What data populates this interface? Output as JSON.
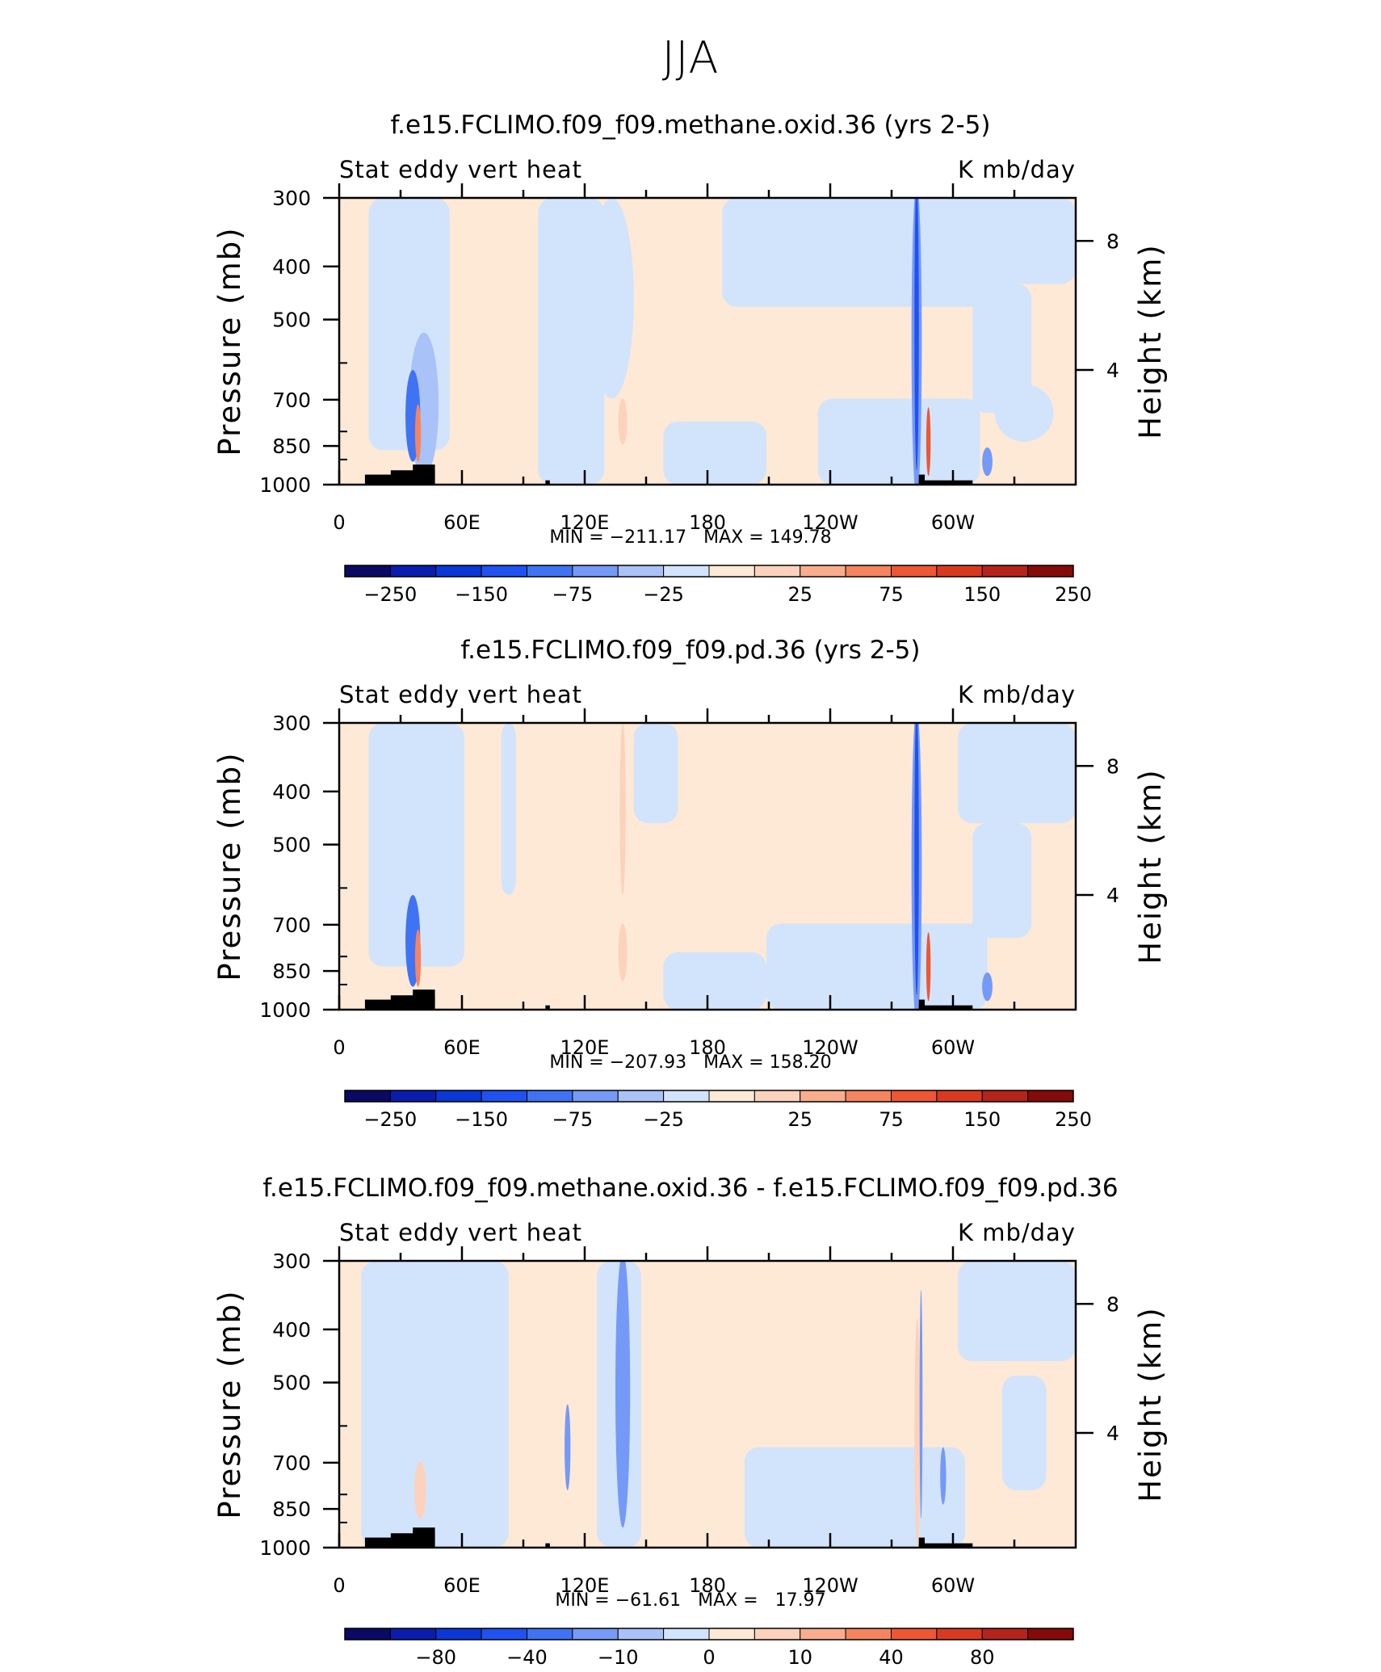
{
  "figure_title": "JJA",
  "colors": {
    "scale": [
      "#0a0a64",
      "#0a1cad",
      "#0a37d6",
      "#1f52f0",
      "#3f73f4",
      "#7599f6",
      "#a9c2f7",
      "#d2e4fb",
      "#fde9d6",
      "#fcd2bc",
      "#f9ad8d",
      "#f5845f",
      "#ee5634",
      "#d93a1f",
      "#b5231a",
      "#850a0a"
    ],
    "land": "#000000",
    "frame": "#000000"
  },
  "chart_data": [
    {
      "type": "heatmap",
      "title": "f.e15.FCLIMO.f09_f09.methane.oxid.36 (yrs 2-5)",
      "left_label": "Stat eddy vert heat",
      "right_label": "K mb/day",
      "ylabel": "Pressure (mb)",
      "ylabel_right": "Height (km)",
      "xticks": [
        "0",
        "60E",
        "120E",
        "180",
        "120W",
        "60W"
      ],
      "yticks": [
        "300",
        "400",
        "500",
        "700",
        "850",
        "1000"
      ],
      "yticks_right": [
        "8",
        "4"
      ],
      "stats": "MIN = −211.17   MAX = 149.78",
      "colorbar_labels": [
        "−250",
        "−150",
        "−75",
        "−25",
        "25",
        "75",
        "150",
        "250"
      ],
      "value_range": [
        -211.17,
        149.78
      ]
    },
    {
      "type": "heatmap",
      "title": "f.e15.FCLIMO.f09_f09.pd.36 (yrs 2-5)",
      "left_label": "Stat eddy vert heat",
      "right_label": "K mb/day",
      "ylabel": "Pressure (mb)",
      "ylabel_right": "Height (km)",
      "xticks": [
        "0",
        "60E",
        "120E",
        "180",
        "120W",
        "60W"
      ],
      "yticks": [
        "300",
        "400",
        "500",
        "700",
        "850",
        "1000"
      ],
      "yticks_right": [
        "8",
        "4"
      ],
      "stats": "MIN = −207.93   MAX = 158.20",
      "colorbar_labels": [
        "−250",
        "−150",
        "−75",
        "−25",
        "25",
        "75",
        "150",
        "250"
      ],
      "value_range": [
        -207.93,
        158.2
      ]
    },
    {
      "type": "heatmap",
      "title": "f.e15.FCLIMO.f09_f09.methane.oxid.36 - f.e15.FCLIMO.f09_f09.pd.36",
      "left_label": "Stat eddy vert heat",
      "right_label": "K mb/day",
      "ylabel": "Pressure (mb)",
      "ylabel_right": "Height (km)",
      "xticks": [
        "0",
        "60E",
        "120E",
        "180",
        "120W",
        "60W"
      ],
      "yticks": [
        "300",
        "400",
        "500",
        "700",
        "850",
        "1000"
      ],
      "yticks_right": [
        "8",
        "4"
      ],
      "stats": "MIN = −61.61   MAX =   17.97",
      "colorbar_labels": [
        "−80",
        "−40",
        "−10",
        "0",
        "10",
        "40",
        "80"
      ],
      "value_range": [
        -61.61,
        17.97
      ]
    }
  ]
}
